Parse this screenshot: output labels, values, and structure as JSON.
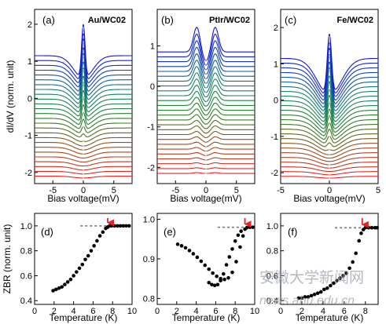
{
  "chart_data": [
    {
      "type": "line",
      "panel_label": "(a)",
      "title": "Au/WC02",
      "xlabel": "Bias voltage(mV)",
      "ylabel": "dI/dV (norm. unit)",
      "xlim": [
        -8,
        8
      ],
      "ylim": [
        -2.3,
        2.4
      ],
      "xticks": [
        "-5",
        "0",
        "5"
      ],
      "yticks": [
        "-2",
        "-1",
        "0",
        "1",
        "2"
      ],
      "series_count": 26,
      "offset_step": 0.13,
      "lowest_offset": -2.1,
      "peak_at_top": 2.05,
      "dip_at_bottom": -2.11,
      "shape": "zero-bias dip with sharp central peak emerging in upper curves"
    },
    {
      "type": "line",
      "panel_label": "(b)",
      "title": "PtIr/WC02",
      "xlabel": "Bias voltage(mV)",
      "ylabel": "",
      "xlim": [
        -8,
        8
      ],
      "ylim": [
        -2.4,
        1.9
      ],
      "xticks": [
        "-5",
        "0",
        "5"
      ],
      "yticks": [
        "-2",
        "-1",
        "0",
        "1"
      ],
      "series_count": 26,
      "offset_step": 0.12,
      "lowest_offset": -2.15,
      "peak_positions_mV": [
        -1.5,
        1.5
      ],
      "peak_at_top": 1.62,
      "shape": "double coherence peaks at about ±1.5 mV growing in upper curves"
    },
    {
      "type": "line",
      "panel_label": "(c)",
      "title": "Fe/WC02",
      "xlabel": "Bias voltage(mV)",
      "ylabel": "",
      "xlim": [
        -5,
        5
      ],
      "ylim": [
        -2.3,
        2.5
      ],
      "xticks": [
        "-5",
        "0",
        "5"
      ],
      "yticks": [
        "-2",
        "-1",
        "0",
        "1",
        "2"
      ],
      "series_count": 26,
      "offset_step": 0.13,
      "lowest_offset": -2.1,
      "peak_at_top": 2.38,
      "shape": "broad V-shaped dip with central peak rising in upper curves"
    },
    {
      "type": "scatter",
      "panel_label": "(d)",
      "xlabel": "Temperature (K)",
      "ylabel": "ZBR (norm. unit)",
      "xlim": [
        0,
        10
      ],
      "ylim": [
        0.37,
        1.1
      ],
      "xticks": [
        "0",
        "2",
        "4",
        "6",
        "8",
        "10"
      ],
      "yticks": [
        "0.4",
        "0.6",
        "0.8",
        "1.0"
      ],
      "arrow_T": 7.5,
      "reference_level": 1.0,
      "x": [
        1.9,
        2.2,
        2.5,
        2.8,
        3.1,
        3.4,
        3.7,
        4.0,
        4.3,
        4.6,
        4.9,
        5.2,
        5.5,
        5.8,
        6.1,
        6.4,
        6.7,
        7.0,
        7.3,
        7.5,
        7.7,
        7.9,
        8.2,
        8.5,
        8.8,
        9.1,
        9.4,
        9.7
      ],
      "values": [
        0.48,
        0.49,
        0.5,
        0.51,
        0.53,
        0.55,
        0.57,
        0.6,
        0.63,
        0.66,
        0.69,
        0.73,
        0.76,
        0.8,
        0.84,
        0.88,
        0.92,
        0.95,
        0.98,
        0.99,
        1.0,
        1.0,
        1.0,
        1.0,
        1.0,
        1.0,
        1.0,
        1.0
      ]
    },
    {
      "type": "scatter",
      "panel_label": "(e)",
      "xlabel": "Temperature (K)",
      "ylabel": "",
      "xlim": [
        0,
        10
      ],
      "ylim": [
        0.785,
        1.015
      ],
      "xticks": [
        "0",
        "2",
        "4",
        "6",
        "8",
        "10"
      ],
      "yticks": [
        "0.8",
        "0.9",
        "1.0"
      ],
      "arrow_T": 9.0,
      "reference_level": 0.98,
      "x": [
        2.1,
        2.5,
        2.9,
        3.3,
        3.7,
        4.1,
        4.5,
        4.9,
        5.3,
        5.7,
        6.1,
        6.5,
        6.9,
        7.3,
        7.7,
        8.1,
        8.5,
        8.8,
        9.0,
        9.2,
        9.5,
        9.8
      ],
      "values": [
        0.937,
        0.933,
        0.928,
        0.921,
        0.913,
        0.904,
        0.894,
        0.884,
        0.874,
        0.864,
        0.856,
        0.85,
        0.848,
        0.852,
        0.866,
        0.893,
        0.93,
        0.958,
        0.975,
        0.979,
        0.98,
        0.98
      ],
      "x2": [
        5.3,
        5.6,
        5.9,
        6.2,
        6.5,
        6.8,
        7.1,
        7.4,
        7.7,
        8.0,
        8.3,
        8.6
      ],
      "values2": [
        0.84,
        0.835,
        0.833,
        0.835,
        0.845,
        0.862,
        0.885,
        0.905,
        0.925,
        0.945,
        0.96,
        0.97
      ]
    },
    {
      "type": "scatter",
      "panel_label": "(f)",
      "xlabel": "Temperature (K)",
      "ylabel": "",
      "xlim": [
        0,
        9.2
      ],
      "ylim": [
        0.37,
        1.1
      ],
      "xticks": [
        "0",
        "2",
        "4",
        "6",
        "8"
      ],
      "yticks": [
        "0.4",
        "0.6",
        "0.8",
        "1.0"
      ],
      "arrow_T": 7.7,
      "reference_level": 0.985,
      "x": [
        1.7,
        2.0,
        2.3,
        2.6,
        2.9,
        3.2,
        3.5,
        3.8,
        4.1,
        4.4,
        4.7,
        5.0,
        5.3,
        5.6,
        5.9,
        6.2,
        6.5,
        6.8,
        7.1,
        7.4,
        7.6,
        7.8,
        8.0,
        8.3,
        8.6,
        8.9,
        9.1
      ],
      "values": [
        0.42,
        0.42,
        0.43,
        0.43,
        0.44,
        0.45,
        0.46,
        0.47,
        0.49,
        0.5,
        0.52,
        0.54,
        0.56,
        0.58,
        0.6,
        0.62,
        0.66,
        0.71,
        0.78,
        0.88,
        0.94,
        0.97,
        0.985,
        0.985,
        0.985,
        0.985,
        0.985
      ]
    }
  ],
  "watermark": {
    "line1": "安徽大学新闻网",
    "line2": "news.ahu.edu.cn"
  }
}
